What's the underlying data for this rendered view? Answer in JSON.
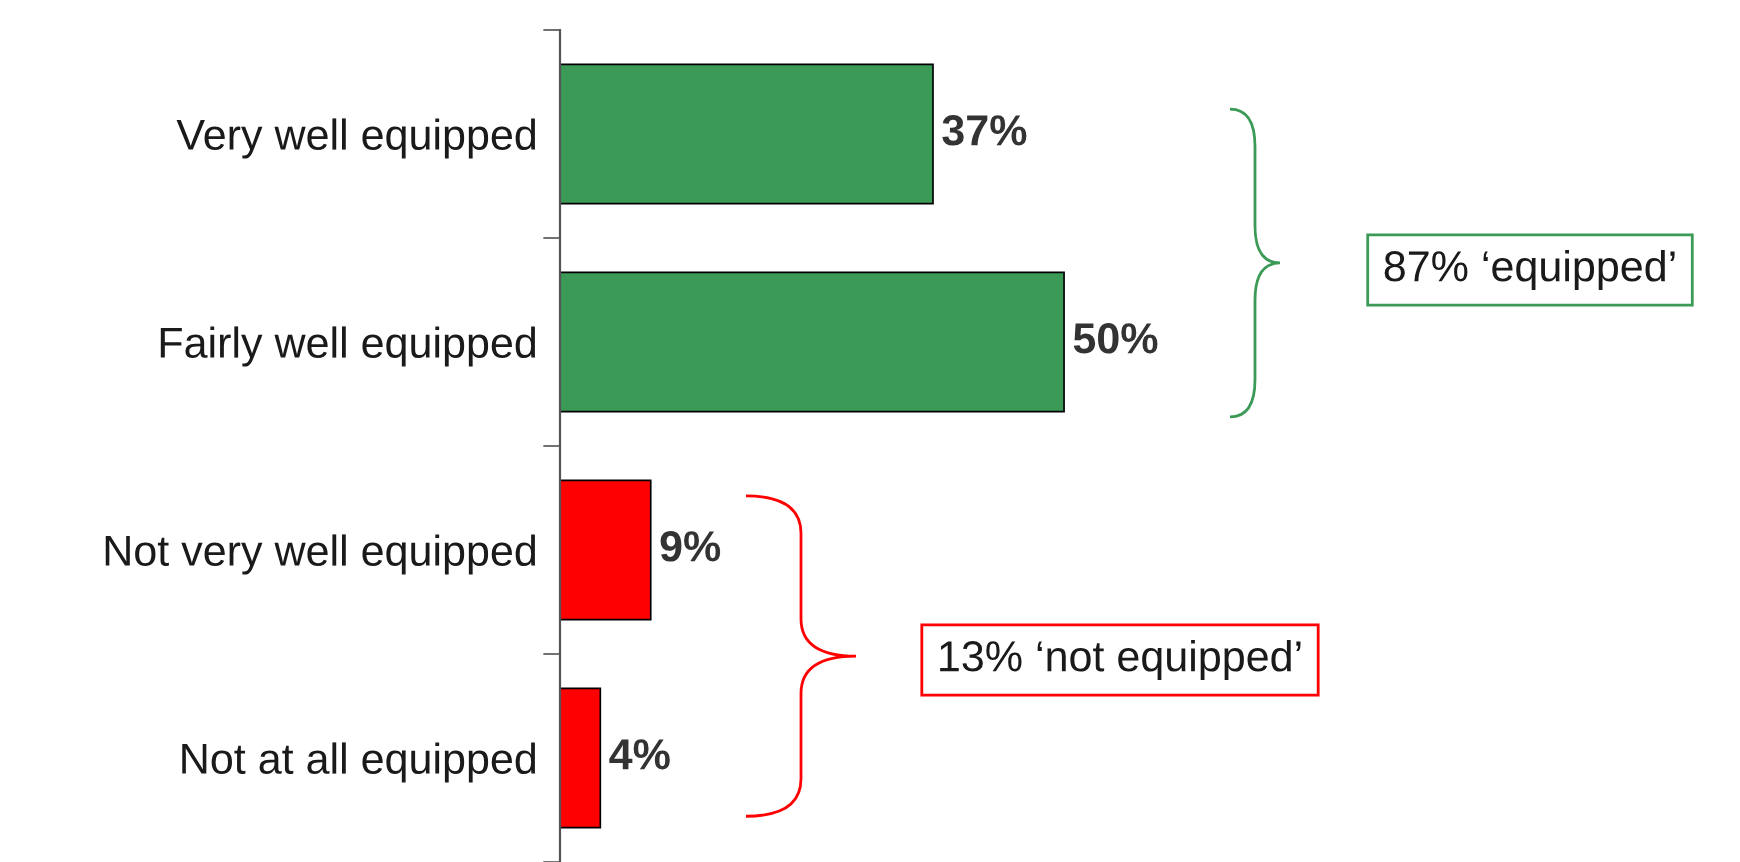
{
  "chart_data": {
    "type": "bar",
    "orientation": "horizontal",
    "categories": [
      "Very well equipped",
      "Fairly well equipped",
      "Not very well equipped",
      "Not at all equipped"
    ],
    "values": [
      37,
      50,
      9,
      4
    ],
    "colors": [
      "#3c9a57",
      "#3c9a57",
      "#ff0000",
      "#ff0000"
    ],
    "value_labels": [
      "37%",
      "50%",
      "9%",
      "4%"
    ],
    "annotations": [
      "87% ‘equipped’",
      "13% ‘not equipped’"
    ],
    "grid": false,
    "legend": false
  }
}
